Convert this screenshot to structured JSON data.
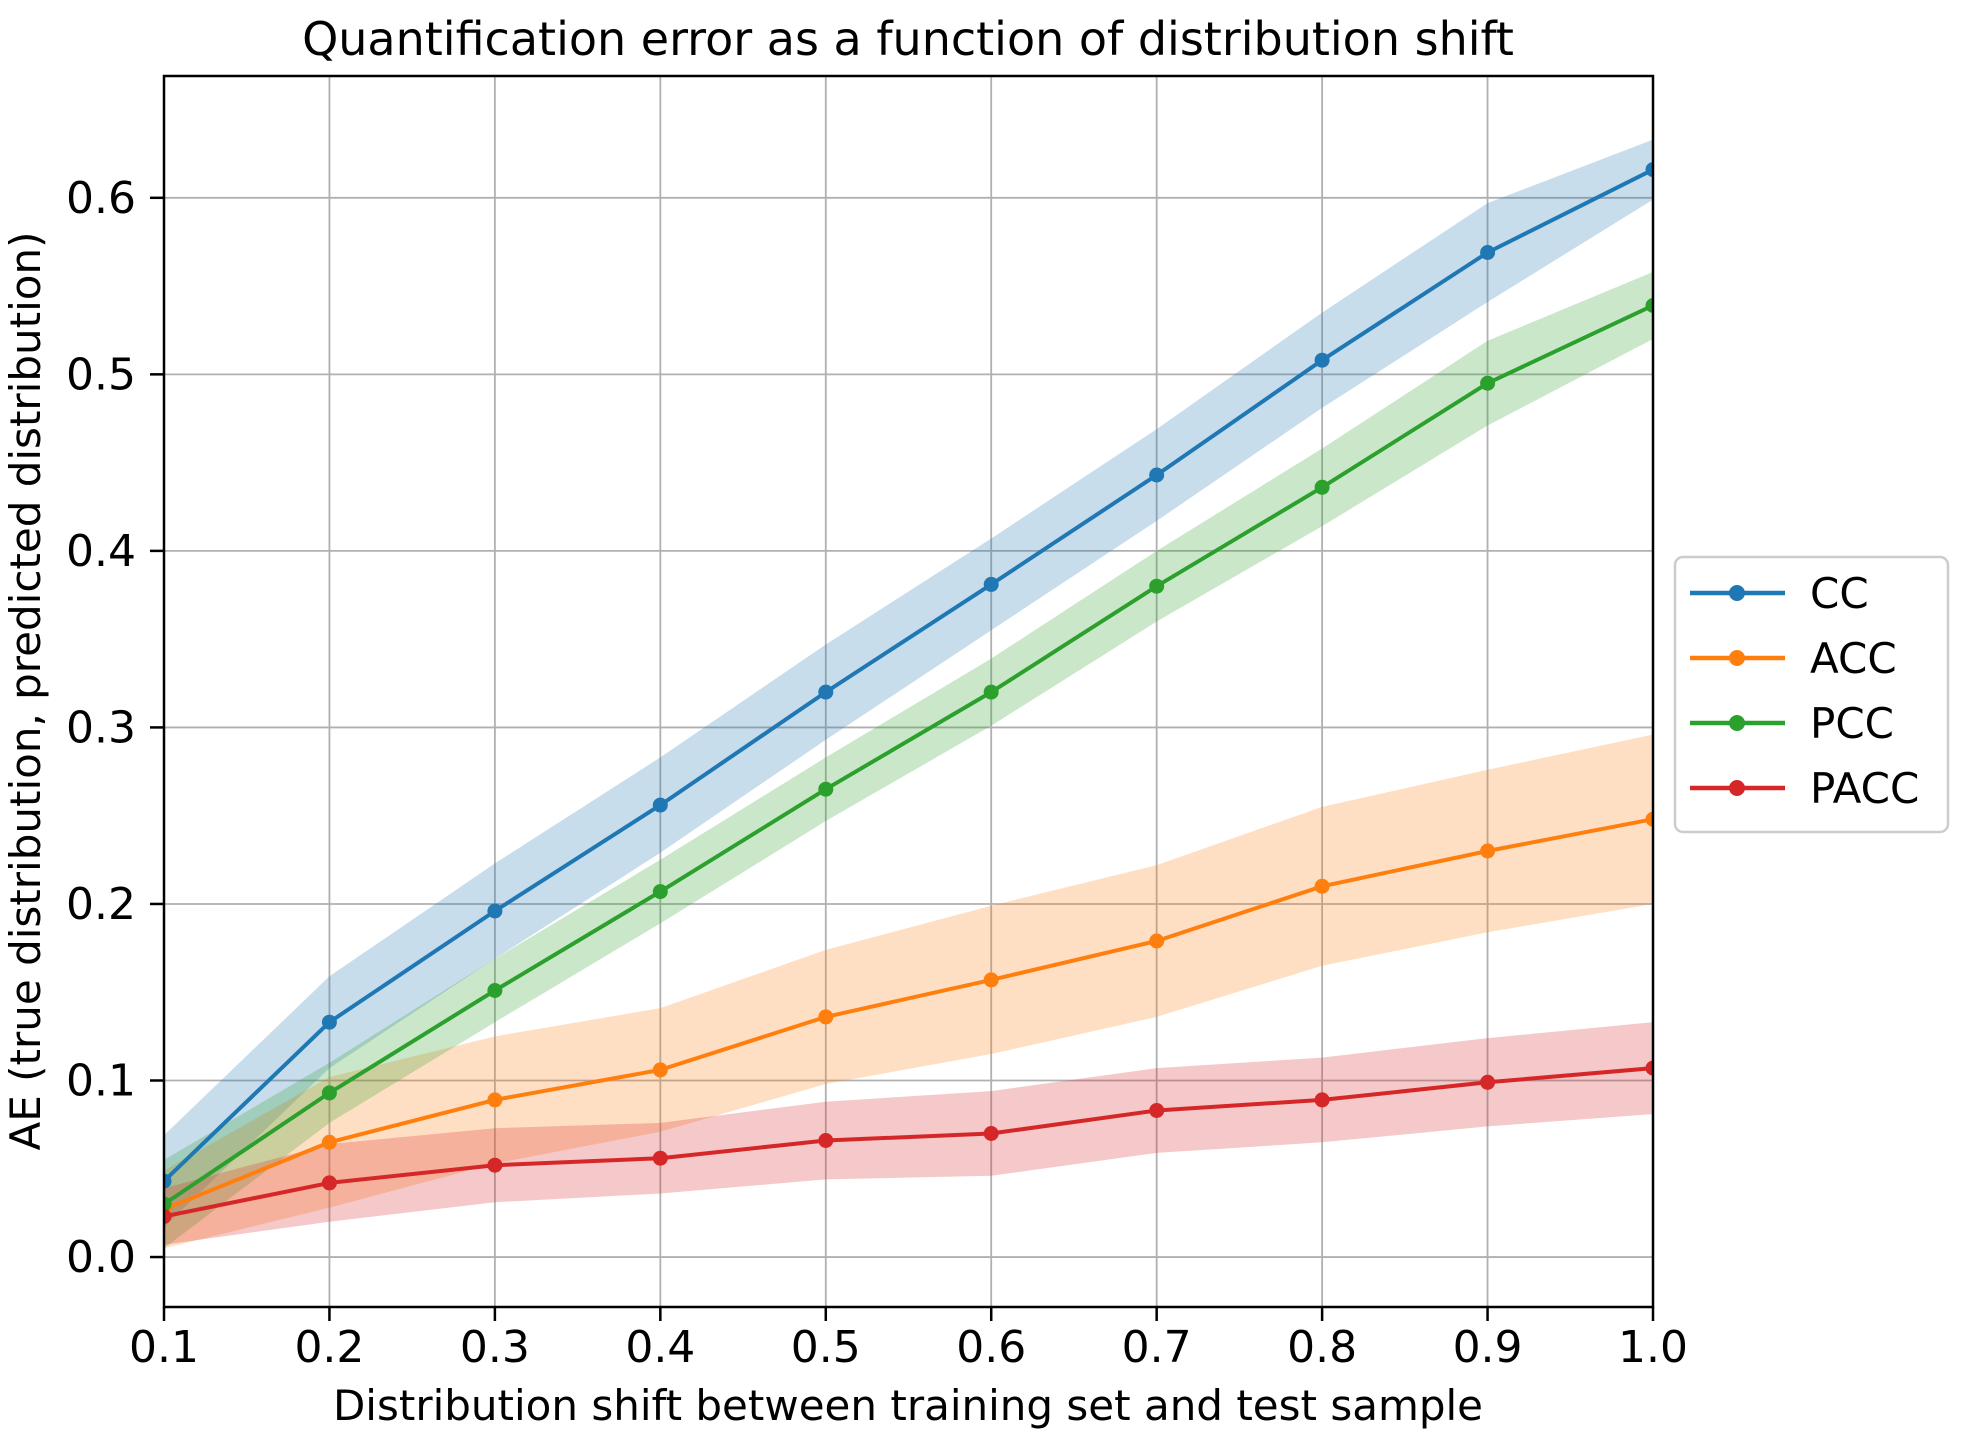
{
  "figure": {
    "title": "Quantification error as a function of distribution shift",
    "xlabel": "Distribution shift between training set and test sample",
    "ylabel": "AE (true distribution, predicted distribution)"
  },
  "chart_data": {
    "type": "line",
    "title": "Quantification error as a function of distribution shift",
    "xlabel": "Distribution shift between training set and test sample",
    "ylabel": "AE (true distribution, predicted distribution)",
    "grid": true,
    "legend_position": "outside-right-center",
    "xlim": [
      0.1,
      1.0
    ],
    "ylim": [
      -0.0283,
      0.669
    ],
    "x": [
      0.1,
      0.2,
      0.3,
      0.4,
      0.5,
      0.6,
      0.7,
      0.8,
      0.9,
      1.0
    ],
    "x_ticks": [
      0.1,
      0.2,
      0.3,
      0.4,
      0.5,
      0.6,
      0.7,
      0.8,
      0.9,
      1.0
    ],
    "x_tick_labels": [
      "0.1",
      "0.2",
      "0.3",
      "0.4",
      "0.5",
      "0.6",
      "0.7",
      "0.8",
      "0.9",
      "1.0"
    ],
    "y_ticks": [
      0.0,
      0.1,
      0.2,
      0.3,
      0.4,
      0.5,
      0.6
    ],
    "y_tick_labels": [
      "0.0",
      "0.1",
      "0.2",
      "0.3",
      "0.4",
      "0.5",
      "0.6"
    ],
    "band_alpha": 0.25,
    "grid_color": "#b0b0b0",
    "series": [
      {
        "name": "CC",
        "color": "#1f77b4",
        "values": [
          0.043,
          0.133,
          0.196,
          0.256,
          0.32,
          0.381,
          0.443,
          0.508,
          0.569,
          0.616
        ],
        "band_upper": [
          0.069,
          0.159,
          0.223,
          0.283,
          0.347,
          0.407,
          0.469,
          0.535,
          0.597,
          0.633
        ],
        "band_lower": [
          0.017,
          0.107,
          0.169,
          0.229,
          0.293,
          0.355,
          0.417,
          0.481,
          0.541,
          0.599
        ]
      },
      {
        "name": "ACC",
        "color": "#ff7f0e",
        "values": [
          0.027,
          0.065,
          0.089,
          0.106,
          0.136,
          0.157,
          0.179,
          0.21,
          0.23,
          0.248
        ],
        "band_upper": [
          0.049,
          0.102,
          0.125,
          0.141,
          0.174,
          0.199,
          0.222,
          0.255,
          0.276,
          0.296
        ],
        "band_lower": [
          0.005,
          0.028,
          0.053,
          0.071,
          0.098,
          0.115,
          0.136,
          0.165,
          0.184,
          0.2
        ]
      },
      {
        "name": "PCC",
        "color": "#2ca02c",
        "values": [
          0.03,
          0.093,
          0.151,
          0.207,
          0.265,
          0.32,
          0.38,
          0.436,
          0.495,
          0.539
        ],
        "band_upper": [
          0.055,
          0.11,
          0.169,
          0.225,
          0.283,
          0.339,
          0.4,
          0.458,
          0.519,
          0.558
        ],
        "band_lower": [
          0.005,
          0.076,
          0.133,
          0.189,
          0.247,
          0.301,
          0.36,
          0.414,
          0.471,
          0.52
        ]
      },
      {
        "name": "PACC",
        "color": "#d62728",
        "values": [
          0.023,
          0.042,
          0.052,
          0.056,
          0.066,
          0.07,
          0.083,
          0.089,
          0.099,
          0.107
        ],
        "band_upper": [
          0.039,
          0.064,
          0.073,
          0.076,
          0.088,
          0.094,
          0.107,
          0.113,
          0.124,
          0.133
        ],
        "band_lower": [
          0.007,
          0.02,
          0.031,
          0.036,
          0.044,
          0.046,
          0.059,
          0.065,
          0.074,
          0.081
        ]
      }
    ]
  }
}
